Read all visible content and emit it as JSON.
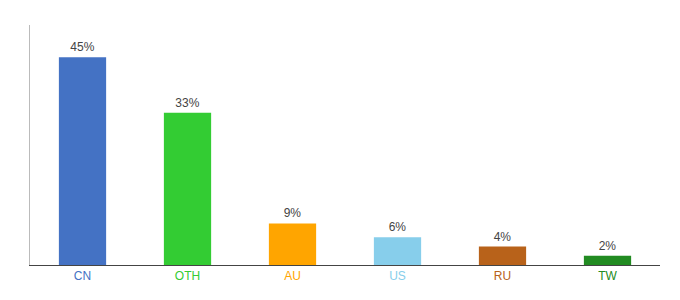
{
  "chart_data": {
    "type": "bar",
    "categories": [
      "CN",
      "OTH",
      "AU",
      "US",
      "RU",
      "TW"
    ],
    "values": [
      45,
      33,
      9,
      6,
      4,
      2
    ],
    "value_labels": [
      "45%",
      "33%",
      "9%",
      "6%",
      "4%",
      "2%"
    ],
    "colors": [
      "#4472C4",
      "#33CC33",
      "#FFA500",
      "#87CEEB",
      "#B8621A",
      "#228B22"
    ],
    "ylim": [
      0,
      52
    ],
    "grid": false,
    "data_labels": true,
    "tick_labels": "x"
  }
}
